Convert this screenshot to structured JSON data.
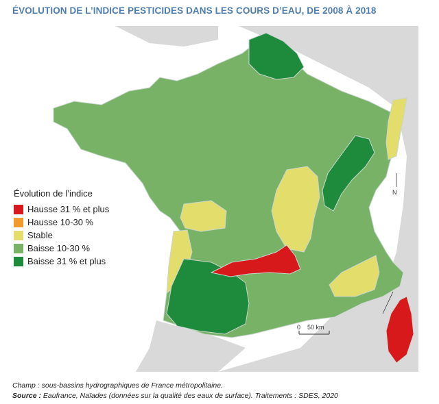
{
  "title": "ÉVOLUTION DE L’INDICE PESTICIDES DANS LES COURS D’EAU, DE 2008 À 2018",
  "legend": {
    "title": "Évolution de l’indice",
    "items": [
      {
        "label": "Hausse 31 % et plus",
        "color": "#d7191c"
      },
      {
        "label": "Hausse 10-30 %",
        "color": "#f39a2c"
      },
      {
        "label": "Stable",
        "color": "#e3dd6c"
      },
      {
        "label": "Baisse 10-30 %",
        "color": "#77b266"
      },
      {
        "label": "Baisse 31 % et plus",
        "color": "#1e8a3c"
      }
    ]
  },
  "map": {
    "scale_zero": "0",
    "scale_label": "50 km",
    "north_label": "N"
  },
  "footer": {
    "champ": "Champ : sous-bassins hydrographiques de France métropolitaine.",
    "source_label": "Source :",
    "source_text": " Eaufrance, Naïades (données sur la qualité des eaux de surface). Traitements : SDES, 2020"
  },
  "colors": {
    "land_bg": "#d9d9d9",
    "baisse_forte": "#1e8a3c",
    "baisse": "#77b266",
    "stable": "#e3dd6c",
    "hausse_forte": "#d7191c",
    "border": "#c9d6cf"
  }
}
